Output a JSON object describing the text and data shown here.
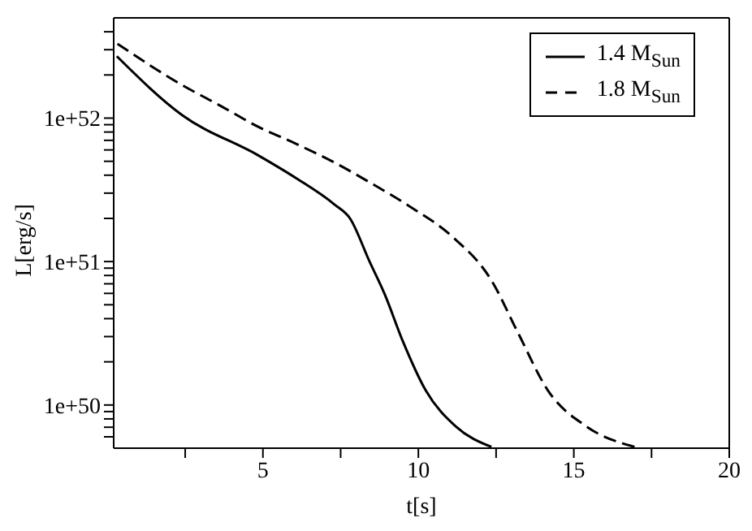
{
  "chart_data": {
    "type": "line",
    "xlabel": "t[s]",
    "ylabel": "L[erg/s]",
    "log": "y",
    "xlim": [
      0.2,
      20
    ],
    "xticks": [
      {
        "value": 2.5,
        "label": null
      },
      5,
      {
        "value": 7.5,
        "label": null
      },
      10,
      {
        "value": 12.5,
        "label": null
      },
      15,
      {
        "value": 17.5,
        "label": null
      },
      20
    ],
    "ylim": [
      5e+49,
      5e+52
    ],
    "yticks": [
      {
        "value": 6e+49,
        "label": null
      },
      {
        "value": 7e+49,
        "label": null
      },
      {
        "value": 8e+49,
        "label": null
      },
      {
        "value": 9e+49,
        "label": null
      },
      {
        "value": 1e+50,
        "label": "1e+50"
      },
      {
        "value": 2e+50,
        "label": null
      },
      {
        "value": 3e+50,
        "label": null
      },
      {
        "value": 4e+50,
        "label": null
      },
      {
        "value": 5e+50,
        "label": null
      },
      {
        "value": 6e+50,
        "label": null
      },
      {
        "value": 7e+50,
        "label": null
      },
      {
        "value": 8e+50,
        "label": null
      },
      {
        "value": 9e+50,
        "label": null
      },
      {
        "value": 1e+51,
        "label": "1e+51"
      },
      {
        "value": 2e+51,
        "label": null
      },
      {
        "value": 3e+51,
        "label": null
      },
      {
        "value": 4e+51,
        "label": null
      },
      {
        "value": 5e+51,
        "label": null
      },
      {
        "value": 6e+51,
        "label": null
      },
      {
        "value": 7e+51,
        "label": null
      },
      {
        "value": 8e+51,
        "label": null
      },
      {
        "value": 9e+51,
        "label": null
      },
      {
        "value": 1e+52,
        "label": "1e+52"
      },
      {
        "value": 2e+52,
        "label": null
      },
      {
        "value": 3e+52,
        "label": null
      },
      {
        "value": 4e+52,
        "label": null
      }
    ],
    "legend": "top right",
    "marker": "none",
    "series": [
      {
        "name": "1.4 M$_{Sun}$",
        "color": "#000000",
        "line_style": "solid",
        "x": [
          0.3,
          2.4,
          4.85,
          6.08,
          7.3,
          7.8,
          8.43,
          8.92,
          9.51,
          10.24,
          11.2,
          12.35
        ],
        "values": [
          2.7e+52,
          1.05e+52,
          5.5e+51,
          3.8e+51,
          2.5e+51,
          2e+51,
          1e+51,
          5.9e+50,
          2.75e+50,
          1.26e+50,
          7.1e+49,
          5.1e+49
        ]
      },
      {
        "name": "1.8 M$_{Sun}$",
        "color": "#000000",
        "line_style": "dashed",
        "x": [
          0.32,
          2.4,
          3.6,
          4.85,
          6.08,
          7.3,
          8.5,
          9.75,
          11.08,
          12.35,
          13.2,
          14.17,
          15.4,
          16.96
        ],
        "values": [
          3.3e+52,
          1.7e+52,
          1.23e+52,
          8.7e+51,
          6.6e+51,
          4.9e+51,
          3.5e+51,
          2.4e+51,
          1.5e+51,
          7.4e+50,
          3.2e+50,
          1.26e+50,
          7.1e+49,
          5.1e+49
        ]
      }
    ]
  }
}
